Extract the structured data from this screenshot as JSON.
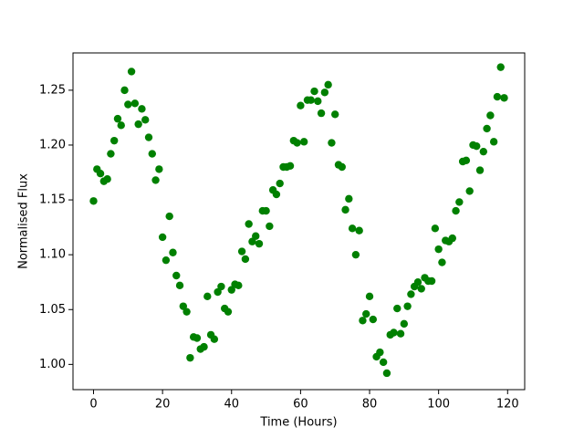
{
  "chart_data": {
    "type": "scatter",
    "xlabel": "Time (Hours)",
    "ylabel": "Normalised Flux",
    "color": "#008000",
    "x": [
      0,
      1,
      2,
      3,
      4,
      5,
      6,
      7,
      8,
      9,
      10,
      11,
      12,
      13,
      14,
      15,
      16,
      17,
      18,
      19,
      20,
      21,
      22,
      23,
      24,
      25,
      26,
      27,
      28,
      29,
      30,
      31,
      32,
      33,
      34,
      35,
      36,
      37,
      38,
      39,
      40,
      41,
      42,
      43,
      44,
      45,
      46,
      47,
      48,
      49,
      50,
      51,
      52,
      53,
      54,
      55,
      56,
      57,
      58,
      59,
      60,
      61,
      62,
      63,
      64,
      65,
      66,
      67,
      68,
      69,
      70,
      71,
      72,
      73,
      74,
      75,
      76,
      77,
      78,
      79,
      80,
      81,
      82,
      83,
      84,
      85,
      86,
      87,
      88,
      89,
      90,
      91,
      92,
      93,
      94,
      95,
      96,
      97,
      98,
      99,
      100,
      101,
      102,
      103,
      104,
      105,
      106,
      107,
      108,
      109,
      110,
      111,
      112,
      113,
      114,
      115,
      116,
      117,
      118,
      119
    ],
    "values": [
      1.149,
      1.178,
      1.174,
      1.167,
      1.169,
      1.192,
      1.204,
      1.224,
      1.218,
      1.25,
      1.237,
      1.267,
      1.238,
      1.219,
      1.233,
      1.223,
      1.207,
      1.192,
      1.168,
      1.178,
      1.116,
      1.095,
      1.135,
      1.102,
      1.081,
      1.072,
      1.053,
      1.048,
      1.006,
      1.025,
      1.024,
      1.014,
      1.016,
      1.062,
      1.027,
      1.023,
      1.066,
      1.071,
      1.051,
      1.048,
      1.068,
      1.073,
      1.072,
      1.103,
      1.096,
      1.128,
      1.112,
      1.117,
      1.11,
      1.14,
      1.14,
      1.126,
      1.159,
      1.155,
      1.165,
      1.18,
      1.18,
      1.181,
      1.204,
      1.202,
      1.236,
      1.203,
      1.241,
      1.241,
      1.249,
      1.24,
      1.229,
      1.248,
      1.255,
      1.202,
      1.228,
      1.182,
      1.18,
      1.141,
      1.151,
      1.124,
      1.1,
      1.122,
      1.04,
      1.046,
      1.062,
      1.041,
      1.007,
      1.011,
      1.002,
      0.992,
      1.027,
      1.029,
      1.051,
      1.028,
      1.037,
      1.053,
      1.064,
      1.071,
      1.075,
      1.069,
      1.079,
      1.076,
      1.076,
      1.124,
      1.105,
      1.093,
      1.113,
      1.112,
      1.115,
      1.14,
      1.148,
      1.185,
      1.186,
      1.158,
      1.2,
      1.199,
      1.177,
      1.194,
      1.215,
      1.227,
      1.203,
      1.244,
      1.271,
      1.243
    ],
    "xlim": [
      -5.95,
      124.95
    ],
    "xticks": [
      0,
      20,
      40,
      60,
      80,
      100,
      120
    ],
    "ylim": [
      0.977,
      1.284
    ],
    "yticks": [
      {
        "value": 1.0,
        "label": "1.00"
      },
      1.05,
      {
        "value": 1.1,
        "label": "1.10"
      },
      1.15,
      {
        "value": 1.2,
        "label": "1.20"
      },
      1.25
    ],
    "grid": false
  }
}
